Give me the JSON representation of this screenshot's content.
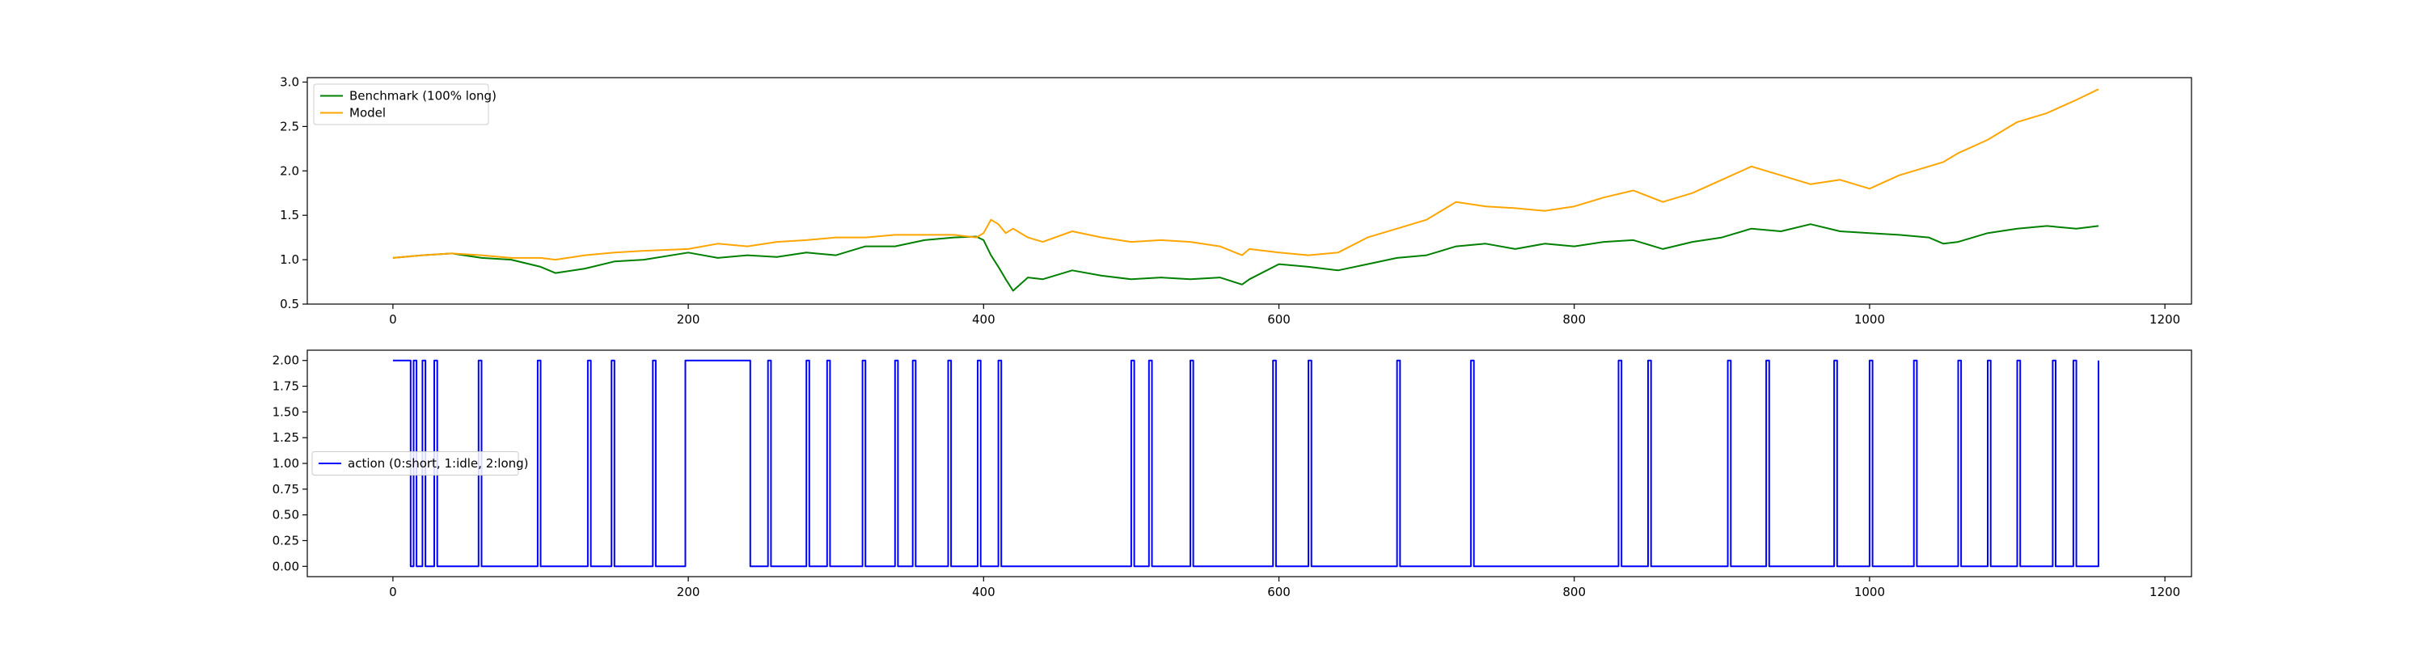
{
  "chart_data": [
    {
      "type": "line",
      "xlim": [
        -58,
        1218
      ],
      "ylim": [
        0.5,
        3.05
      ],
      "xticks": [
        0,
        200,
        400,
        600,
        800,
        1000,
        1200
      ],
      "yticks": [
        0.5,
        1.0,
        1.5,
        2.0,
        2.5,
        3.0
      ],
      "xtick_labels": [
        "0",
        "200",
        "400",
        "600",
        "800",
        "1000",
        "1200"
      ],
      "ytick_labels": [
        "0.5",
        "1.0",
        "1.5",
        "2.0",
        "2.5",
        "3.0"
      ],
      "grid": false,
      "legend_position": "top-left",
      "series": [
        {
          "name": "Benchmark (100% long)",
          "color": "#008000",
          "x": [
            0,
            20,
            40,
            60,
            80,
            100,
            110,
            130,
            150,
            170,
            200,
            220,
            240,
            260,
            280,
            300,
            320,
            340,
            360,
            380,
            395,
            400,
            405,
            410,
            415,
            420,
            430,
            440,
            460,
            480,
            500,
            520,
            540,
            560,
            575,
            580,
            600,
            620,
            640,
            660,
            680,
            700,
            720,
            740,
            760,
            780,
            800,
            820,
            840,
            860,
            880,
            900,
            920,
            940,
            960,
            980,
            1000,
            1020,
            1040,
            1050,
            1060,
            1080,
            1100,
            1120,
            1140,
            1155
          ],
          "y": [
            1.02,
            1.05,
            1.07,
            1.02,
            1.0,
            0.92,
            0.85,
            0.9,
            0.98,
            1.0,
            1.08,
            1.02,
            1.05,
            1.03,
            1.08,
            1.05,
            1.15,
            1.15,
            1.22,
            1.25,
            1.26,
            1.22,
            1.05,
            0.92,
            0.78,
            0.65,
            0.8,
            0.78,
            0.88,
            0.82,
            0.78,
            0.8,
            0.78,
            0.8,
            0.72,
            0.78,
            0.95,
            0.92,
            0.88,
            0.95,
            1.02,
            1.05,
            1.15,
            1.18,
            1.12,
            1.18,
            1.15,
            1.2,
            1.22,
            1.12,
            1.2,
            1.25,
            1.35,
            1.32,
            1.4,
            1.32,
            1.3,
            1.28,
            1.25,
            1.18,
            1.2,
            1.3,
            1.35,
            1.38,
            1.35,
            1.38
          ]
        },
        {
          "name": "Model",
          "color": "#ffa500",
          "x": [
            0,
            20,
            40,
            60,
            80,
            100,
            110,
            130,
            150,
            170,
            200,
            220,
            240,
            260,
            280,
            300,
            320,
            340,
            360,
            380,
            395,
            400,
            405,
            410,
            415,
            420,
            430,
            440,
            460,
            480,
            500,
            520,
            540,
            560,
            575,
            580,
            600,
            620,
            640,
            660,
            680,
            700,
            720,
            740,
            760,
            780,
            800,
            820,
            840,
            860,
            880,
            900,
            920,
            940,
            960,
            980,
            1000,
            1020,
            1040,
            1050,
            1060,
            1080,
            1100,
            1120,
            1140,
            1155
          ],
          "y": [
            1.02,
            1.05,
            1.07,
            1.05,
            1.02,
            1.02,
            1.0,
            1.05,
            1.08,
            1.1,
            1.12,
            1.18,
            1.15,
            1.2,
            1.22,
            1.25,
            1.25,
            1.28,
            1.28,
            1.28,
            1.25,
            1.3,
            1.45,
            1.4,
            1.3,
            1.35,
            1.25,
            1.2,
            1.32,
            1.25,
            1.2,
            1.22,
            1.2,
            1.15,
            1.05,
            1.12,
            1.08,
            1.05,
            1.08,
            1.25,
            1.35,
            1.45,
            1.65,
            1.6,
            1.58,
            1.55,
            1.6,
            1.7,
            1.78,
            1.65,
            1.75,
            1.9,
            2.05,
            1.95,
            1.85,
            1.9,
            1.8,
            1.95,
            2.05,
            2.1,
            2.2,
            2.35,
            2.55,
            2.65,
            2.8,
            2.92
          ]
        }
      ]
    },
    {
      "type": "line",
      "xlim": [
        -58,
        1218
      ],
      "ylim": [
        -0.1,
        2.1
      ],
      "xticks": [
        0,
        200,
        400,
        600,
        800,
        1000,
        1200
      ],
      "yticks": [
        0.0,
        0.25,
        0.5,
        0.75,
        1.0,
        1.25,
        1.5,
        1.75,
        2.0
      ],
      "xtick_labels": [
        "0",
        "200",
        "400",
        "600",
        "800",
        "1000",
        "1200"
      ],
      "ytick_labels": [
        "0.00",
        "0.25",
        "0.50",
        "0.75",
        "1.00",
        "1.25",
        "1.50",
        "1.75",
        "2.00"
      ],
      "grid": false,
      "legend_position": "center-left",
      "series": [
        {
          "name": "action (0:short, 1:idle, 2:long)",
          "color": "#0000ff",
          "step": true,
          "x": [
            0,
            10,
            12,
            14,
            16,
            20,
            22,
            28,
            30,
            58,
            60,
            98,
            100,
            132,
            134,
            148,
            150,
            176,
            178,
            198,
            200,
            240,
            242,
            254,
            256,
            280,
            282,
            294,
            296,
            318,
            320,
            340,
            342,
            352,
            354,
            376,
            378,
            396,
            398,
            410,
            412,
            500,
            502,
            512,
            514,
            540,
            542,
            596,
            598,
            620,
            622,
            680,
            682,
            730,
            732,
            830,
            832,
            850,
            852,
            904,
            906,
            930,
            932,
            976,
            978,
            1000,
            1002,
            1030,
            1032,
            1060,
            1062,
            1080,
            1082,
            1100,
            1102,
            1124,
            1126,
            1138,
            1140,
            1155
          ],
          "y": [
            2,
            2,
            0,
            2,
            0,
            2,
            0,
            2,
            0,
            2,
            0,
            2,
            0,
            2,
            0,
            2,
            0,
            2,
            0,
            2,
            2,
            2,
            0,
            2,
            0,
            2,
            0,
            2,
            0,
            2,
            0,
            2,
            0,
            2,
            0,
            2,
            0,
            2,
            0,
            2,
            0,
            2,
            0,
            2,
            0,
            2,
            0,
            2,
            0,
            2,
            0,
            2,
            0,
            2,
            0,
            2,
            0,
            2,
            0,
            2,
            0,
            2,
            0,
            2,
            0,
            2,
            0,
            2,
            0,
            2,
            0,
            2,
            0,
            2,
            0,
            2,
            0,
            2,
            0,
            2
          ]
        }
      ]
    }
  ],
  "panels_colors": {
    "axis": "#000000",
    "legend_border": "#cccccc",
    "background": "#ffffff"
  }
}
